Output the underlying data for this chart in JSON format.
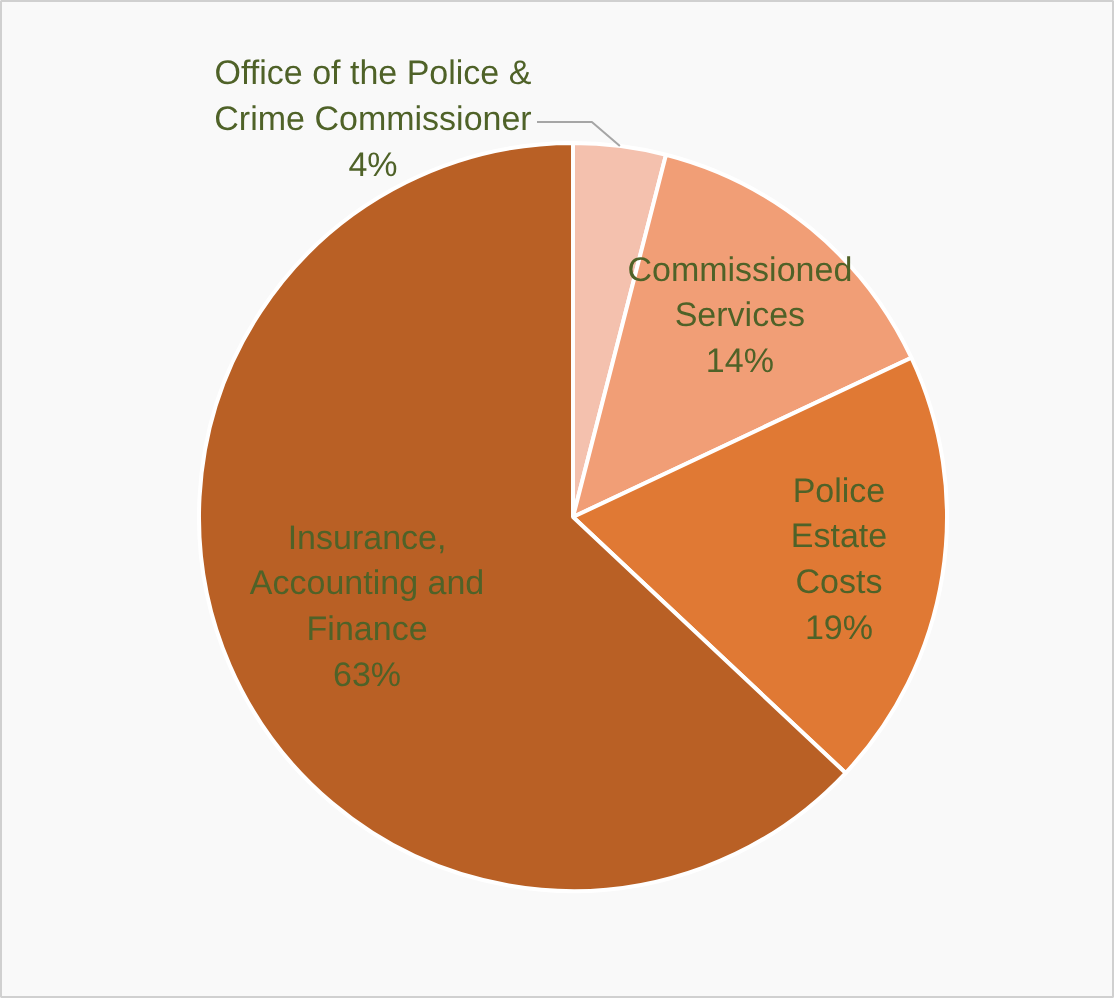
{
  "chart_data": {
    "type": "pie",
    "categories": [
      "Office of the Police &\nCrime Commissioner",
      "Commissioned\nServices",
      "Police\nEstate\nCosts",
      "Insurance,\nAccounting and\nFinance"
    ],
    "values": [
      4,
      14,
      19,
      63
    ],
    "colors": [
      "#f4c1ae",
      "#f19e76",
      "#e07934",
      "#b96025"
    ],
    "value_labels": [
      "4%",
      "14%",
      "19%",
      "63%"
    ]
  }
}
